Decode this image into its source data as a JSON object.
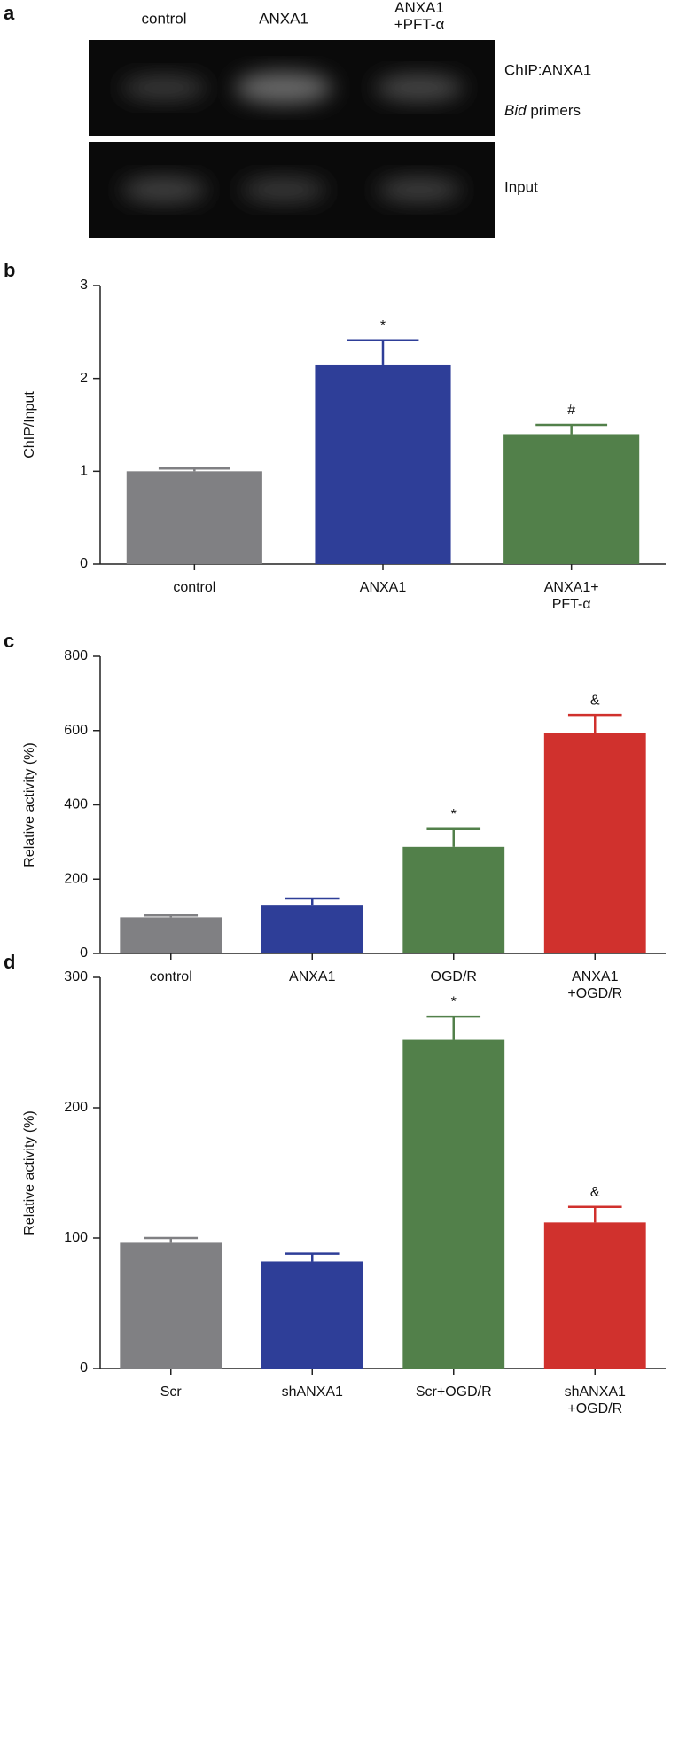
{
  "gel": {
    "panel": "a",
    "lanes": [
      "control",
      "ANXA1",
      "ANXA1\n+PFT-α"
    ],
    "rows": [
      "ChIP:ANXA1",
      "Input"
    ],
    "primer_gene": "Bid",
    "primer_text": "primers"
  },
  "chart_data": [
    {
      "type": "bar",
      "panel": "b",
      "y_label": "ChIP/Input",
      "categories": [
        "control",
        "ANXA1",
        "ANXA1+\nPFT-α"
      ],
      "values": [
        1.0,
        2.15,
        1.4
      ],
      "errors": [
        0.03,
        0.26,
        0.1
      ],
      "annotations": [
        null,
        "*",
        "#"
      ],
      "colors": [
        "#808083",
        "#2e3e98",
        "#52804a"
      ],
      "ylim": [
        0,
        3
      ],
      "yticks": [
        0,
        1,
        2,
        3
      ]
    },
    {
      "type": "bar",
      "panel": "c",
      "y_label": "Relative activity (%)",
      "categories": [
        "control",
        "ANXA1",
        "OGD/R",
        "ANXA1\n+OGD/R"
      ],
      "values": [
        97,
        131,
        287,
        594
      ],
      "errors": [
        5,
        17,
        48,
        48
      ],
      "annotations": [
        null,
        null,
        "*",
        "&"
      ],
      "colors": [
        "#808083",
        "#2e3e98",
        "#52804a",
        "#d0312d"
      ],
      "ylim": [
        0,
        800
      ],
      "yticks": [
        0,
        200,
        400,
        600,
        800
      ]
    },
    {
      "type": "bar",
      "panel": "d",
      "y_label": "Relative activity (%)",
      "categories": [
        "Scr",
        "shANXA1",
        "Scr+OGD/R",
        "shANXA1\n+OGD/R"
      ],
      "values": [
        97,
        82,
        252,
        112
      ],
      "errors": [
        3,
        6,
        18,
        12
      ],
      "annotations": [
        null,
        null,
        "*",
        "&"
      ],
      "colors": [
        "#808083",
        "#2e3e98",
        "#52804a",
        "#d0312d"
      ],
      "ylim": [
        0,
        300
      ],
      "yticks": [
        0,
        100,
        200,
        300
      ]
    }
  ]
}
